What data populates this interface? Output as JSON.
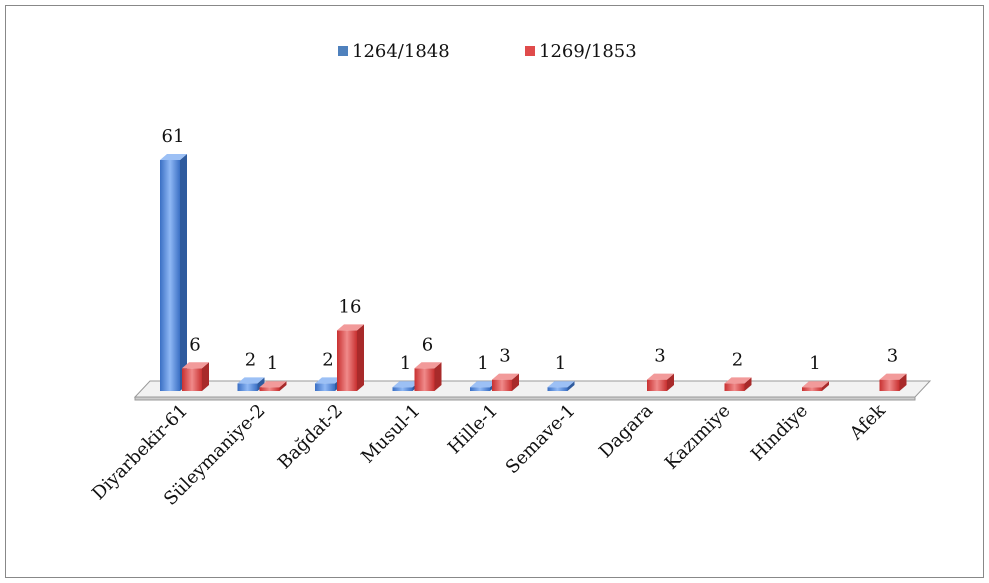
{
  "chart_data": {
    "type": "bar3d",
    "categories": [
      "Diyarbekir-61",
      "Süleymaniye-2",
      "Bağdat-2",
      "Musul-1",
      "Hille-1",
      "Semave-1",
      "Dagara",
      "Kazımiye",
      "Hindiye",
      "Afek"
    ],
    "series": [
      {
        "name": "1264/1848",
        "color": "#4f81bd",
        "values": [
          61,
          2,
          2,
          1,
          1,
          1,
          null,
          null,
          null,
          null
        ]
      },
      {
        "name": "1269/1853",
        "color": "#e04b4b",
        "values": [
          6,
          1,
          16,
          6,
          3,
          null,
          3,
          2,
          1,
          3
        ]
      }
    ],
    "legend": "top"
  }
}
